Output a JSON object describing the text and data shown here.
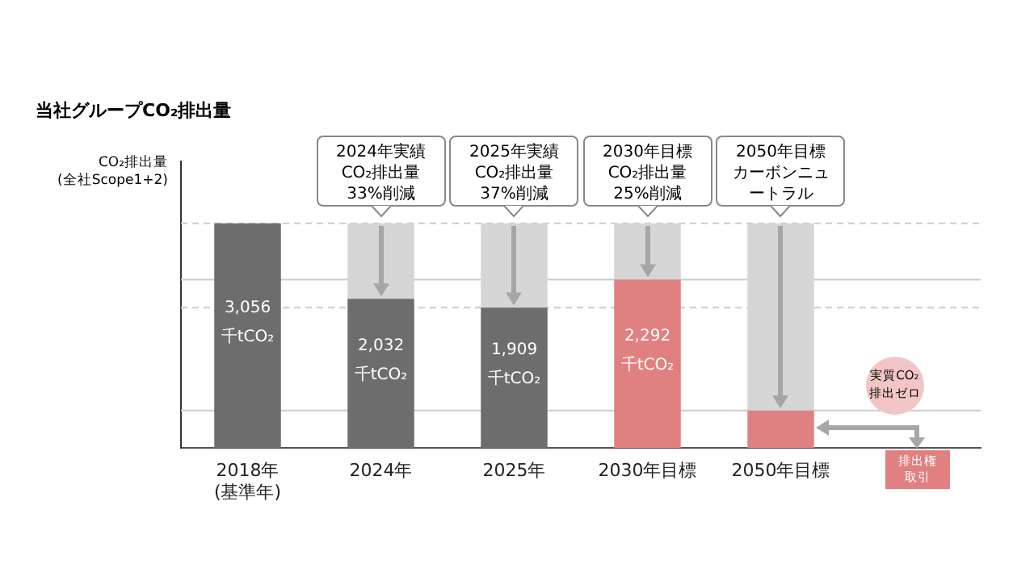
{
  "chart_data": {
    "type": "bar",
    "title": "当社グループCO₂排出量",
    "ylabel": "CO₂排出量\n(全社Scope1+2)",
    "categories": [
      "2018年\n(基準年)",
      "2024年",
      "2025年",
      "2030年目標",
      "2050年目標",
      null
    ],
    "stacked": true,
    "legend": false,
    "grid": false,
    "tick_labels": "x",
    "ylim": [
      0,
      3900
    ],
    "series": [
      {
        "colors": [
          "#6d6d6d",
          "#6d6d6d",
          "#6d6d6d",
          "#e08080",
          "#e08080",
          "#e08080"
        ],
        "values": [
          3056,
          2032,
          1909,
          2292,
          510,
          null
        ],
        "value_labels": [
          "3,056\n千tCO₂",
          "2,032\n千tCO₂",
          "1,909\n千tCO₂",
          "2,292\n千tCO₂",
          null,
          null
        ]
      },
      {
        "color": "#d6d6d6",
        "values": [
          null,
          1024,
          1147,
          764,
          2546,
          null
        ]
      }
    ],
    "ref_lines": [
      {
        "axis": "y",
        "value": 3056,
        "color": "#cccccc",
        "line_style": "dashed"
      },
      {
        "axis": "y",
        "value": 2292,
        "color": "#cccccc",
        "line_style": "solid"
      },
      {
        "axis": "y",
        "value": 1909,
        "color": "#cccccc",
        "line_style": "dashed"
      },
      {
        "axis": "y",
        "value": 510,
        "color": "#cccccc",
        "line_style": "solid"
      }
    ],
    "annotations": [
      {
        "text": "2024年実績\nCO₂排出量\n33%削減",
        "x": "2024年",
        "y": 3056
      },
      {
        "text": "2025年実績\nCO₂排出量\n37%削減",
        "x": "2025年",
        "y": 3056
      },
      {
        "text": "2030年目標\nCO₂排出量\n25%削減",
        "x": "2030年目標",
        "y": 3056
      },
      {
        "text": "2050年目標カーボンニュートラル",
        "x": "2050年目標",
        "y": 3056
      },
      "実質CO₂\n排出ゼロ",
      "排出権取引"
    ]
  }
}
